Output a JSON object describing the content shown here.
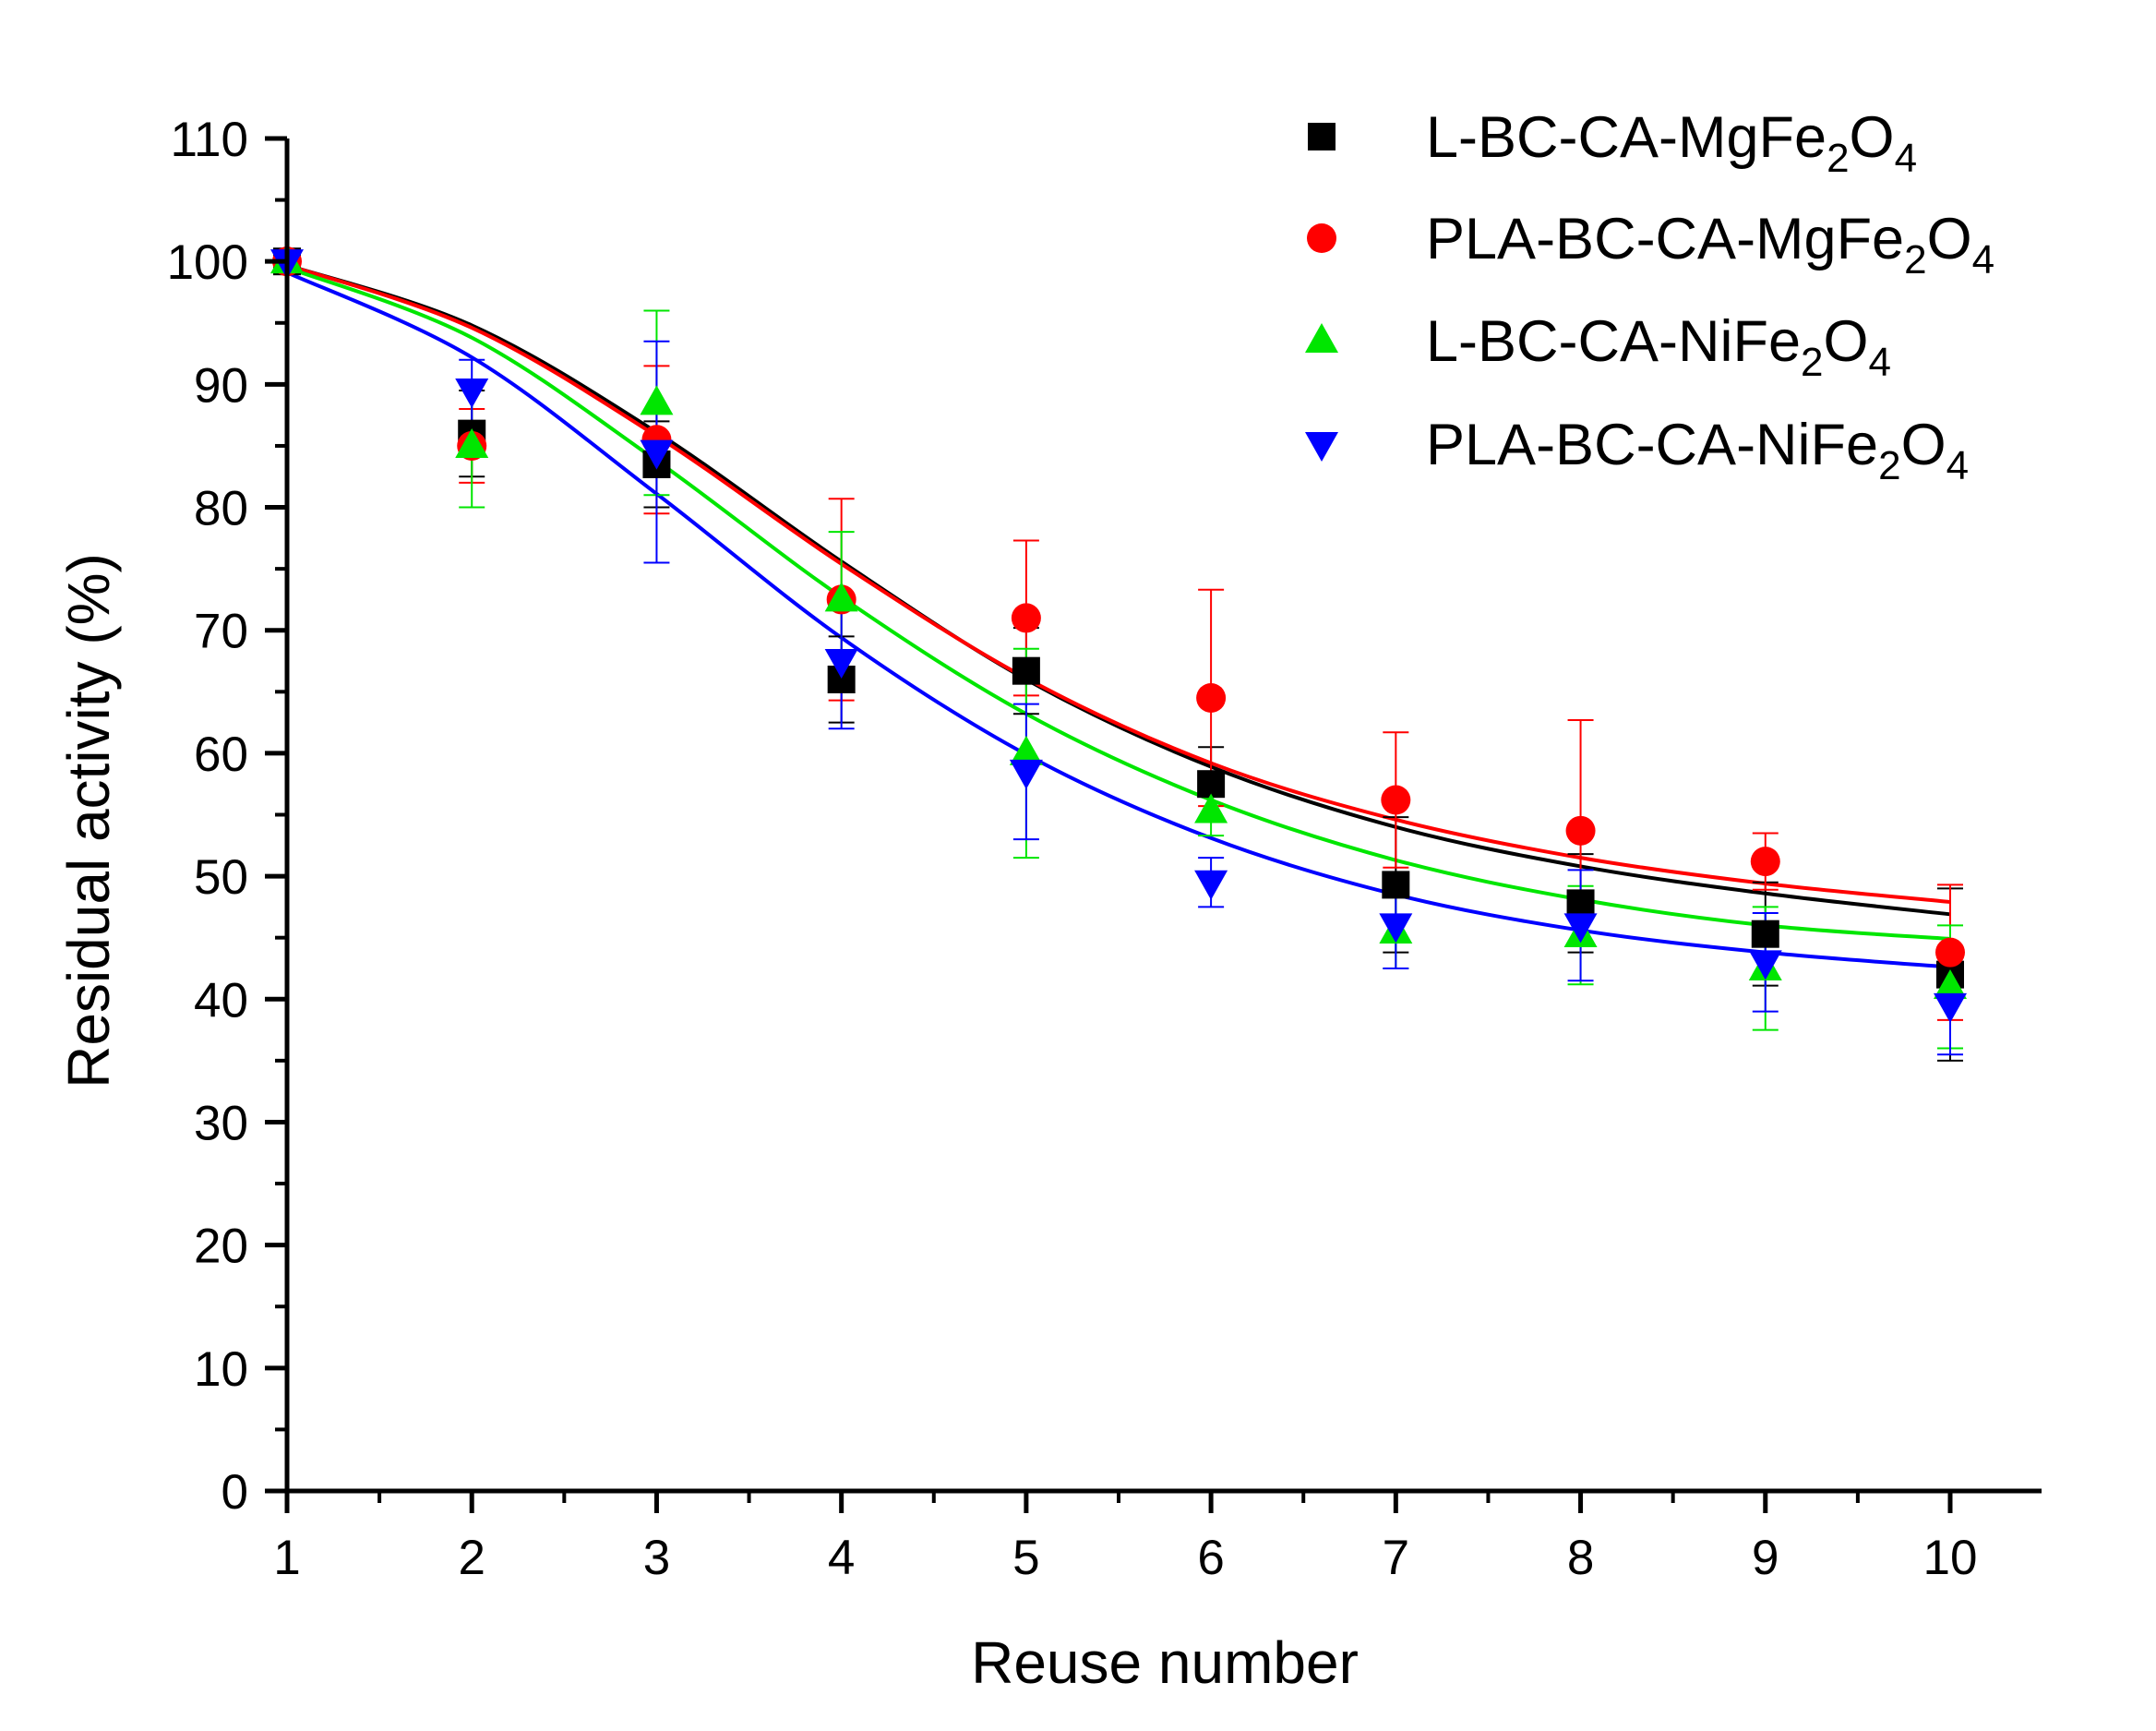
{
  "chart_data": {
    "type": "scatter",
    "title": "",
    "xlabel": "Reuse number",
    "ylabel": "Residual activity (%)",
    "xlim": [
      1,
      10
    ],
    "ylim": [
      0,
      110
    ],
    "xticks": [
      1,
      2,
      3,
      4,
      5,
      6,
      7,
      8,
      9,
      10
    ],
    "yticks": [
      0,
      10,
      20,
      30,
      40,
      50,
      60,
      70,
      80,
      90,
      100,
      110
    ],
    "grid": false,
    "legend_position": "top-right",
    "series": [
      {
        "name": "L-BC-CA-MgFe2O4",
        "label": {
          "base": "L-BC-CA-MgFe",
          "sub1": "2",
          "mid": "O",
          "sub2": "4"
        },
        "color": "#000000",
        "marker": "square",
        "x": [
          1,
          2,
          3,
          4,
          5,
          6,
          7,
          8,
          9,
          10
        ],
        "y": [
          100,
          86,
          83.5,
          66,
          66.7,
          57.5,
          49.3,
          47.8,
          45.3,
          42
        ],
        "err": [
          0,
          3.5,
          3.5,
          3.5,
          3.5,
          3,
          5.5,
          4,
          4.2,
          7
        ],
        "fit": [
          99.7,
          94.8,
          86.1,
          75.6,
          66.0,
          58.9,
          54.0,
          50.8,
          48.6,
          46.9
        ]
      },
      {
        "name": "PLA-BC-CA-MgFe2O4",
        "label": {
          "base": "PLA-BC-CA-MgFe",
          "sub1": "2",
          "mid": "O",
          "sub2": "4"
        },
        "color": "#ff0000",
        "marker": "circle",
        "x": [
          1,
          2,
          3,
          4,
          5,
          6,
          7,
          8,
          9,
          10
        ],
        "y": [
          100,
          85,
          85.5,
          72.5,
          71,
          64.5,
          56.2,
          53.7,
          51.2,
          43.8
        ],
        "err": [
          0,
          3,
          6,
          8.2,
          6.3,
          8.8,
          5.5,
          9,
          2.3,
          5.5
        ],
        "fit": [
          99.7,
          94.6,
          85.8,
          75.4,
          66.1,
          59.2,
          54.6,
          51.5,
          49.4,
          47.9
        ]
      },
      {
        "name": "L-BC-CA-NiFe2O4",
        "label": {
          "base": "L-BC-CA-NiFe",
          "sub1": "2",
          "mid": "O",
          "sub2": "4"
        },
        "color": "#00e600",
        "marker": "triangle-up",
        "x": [
          1,
          2,
          3,
          4,
          5,
          6,
          7,
          8,
          9,
          10
        ],
        "y": [
          100,
          85,
          88.5,
          72.5,
          60,
          55.3,
          45.5,
          45.2,
          42.5,
          41
        ],
        "err": [
          0,
          5,
          7.5,
          5.5,
          8.5,
          2,
          3,
          4,
          5,
          5
        ],
        "fit": [
          99.5,
          93.8,
          83.8,
          72.7,
          63.2,
          56.2,
          51.3,
          48.1,
          46.0,
          44.9
        ]
      },
      {
        "name": "PLA-BC-CA-NiFe2O4",
        "label": {
          "base": "PLA-BC-CA-NiFe",
          "sub1": "2",
          "mid": "O",
          "sub2": "4"
        },
        "color": "#0000ff",
        "marker": "triangle-down",
        "x": [
          1,
          2,
          3,
          4,
          5,
          6,
          7,
          8,
          9,
          10
        ],
        "y": [
          100,
          89.5,
          84.5,
          67.5,
          58.5,
          49.5,
          46,
          46,
          43,
          39.5
        ],
        "err": [
          0,
          2.5,
          9,
          5.5,
          5.5,
          2,
          3.5,
          4.5,
          4,
          4
        ],
        "fit": [
          99.1,
          92.2,
          81.1,
          69.4,
          59.9,
          53.1,
          48.5,
          45.6,
          43.8,
          42.6
        ]
      }
    ]
  }
}
